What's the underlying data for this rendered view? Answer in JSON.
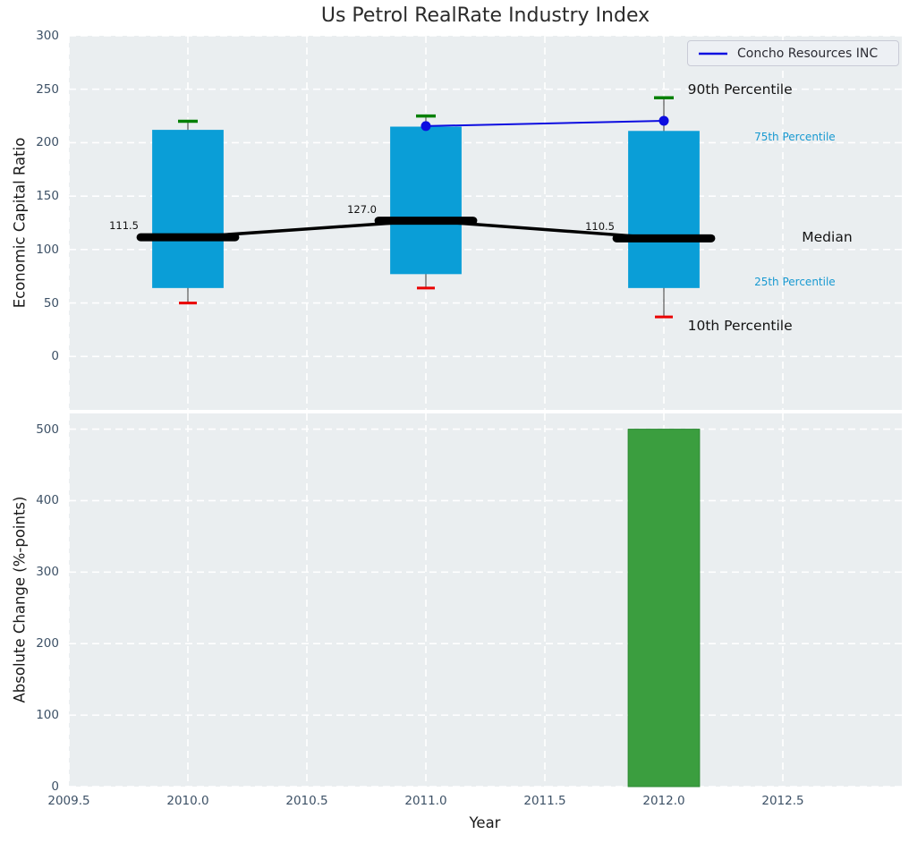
{
  "title": "Us Petrol RealRate Industry Index",
  "legend": {
    "label": "Concho Resources INC"
  },
  "colors": {
    "box": "#0a9ed7",
    "bar": "#3b9e3f",
    "bar_edge": "#2e8b35",
    "company_line": "#0d0de0",
    "median": "#000000",
    "whisker": "#555555",
    "cap_high": "#008000",
    "cap_low": "#ea0000",
    "axes_bg": "#eaeef0",
    "grid": "#ffffff",
    "tick": "#3d5166",
    "accent_text": "#1799d1",
    "text": "#141414"
  },
  "chart_data": [
    {
      "type": "boxplot",
      "title": "Us Petrol RealRate Industry Index",
      "ylabel": "Economic Capital Ratio",
      "xlim": [
        2009.5,
        2013.0
      ],
      "ylim": [
        -50,
        300
      ],
      "yticks": [
        0,
        50,
        100,
        150,
        200,
        250,
        300
      ],
      "xticks": [
        2009.5,
        2010.0,
        2010.5,
        2011.0,
        2011.5,
        2012.0,
        2012.5
      ],
      "grid": true,
      "legend_position": "upper right",
      "box_width_years": 0.3,
      "boxes": [
        {
          "x": 2010,
          "p10": 50,
          "p25": 64,
          "median": 111.5,
          "p75": 212,
          "p90": 220,
          "median_label": "111.5"
        },
        {
          "x": 2011,
          "p10": 64,
          "p25": 77,
          "median": 127.0,
          "p75": 215,
          "p90": 225,
          "median_label": "127.0"
        },
        {
          "x": 2012,
          "p10": 37,
          "p25": 64,
          "median": 110.5,
          "p75": 211,
          "p90": 242,
          "median_label": "110.5"
        }
      ],
      "series": [
        {
          "name": "Concho Resources INC",
          "x": [
            2011,
            2012
          ],
          "y": [
            215.5,
            220.5
          ]
        }
      ],
      "annotations": [
        {
          "text": "90th Percentile",
          "x": 2012.1,
          "y": 250,
          "style": "large"
        },
        {
          "text": "75th Percentile",
          "x": 2012.38,
          "y": 205,
          "style": "small"
        },
        {
          "text": "Median",
          "x": 2012.58,
          "y": 112,
          "style": "large"
        },
        {
          "text": "25th Percentile",
          "x": 2012.38,
          "y": 70,
          "style": "small"
        },
        {
          "text": "10th Percentile",
          "x": 2012.1,
          "y": 29,
          "style": "large"
        }
      ]
    },
    {
      "type": "bar",
      "ylabel": "Absolute Change (%-points)",
      "xlabel": "Year",
      "xlim": [
        2009.5,
        2013.0
      ],
      "ylim": [
        0,
        522
      ],
      "yticks": [
        0,
        100,
        200,
        300,
        400,
        500
      ],
      "xticks": [
        2009.5,
        2010.0,
        2010.5,
        2011.0,
        2011.5,
        2012.0,
        2012.5
      ],
      "grid": true,
      "bar_width_years": 0.3,
      "bars": [
        {
          "x": 2012,
          "value": 500
        }
      ]
    }
  ]
}
